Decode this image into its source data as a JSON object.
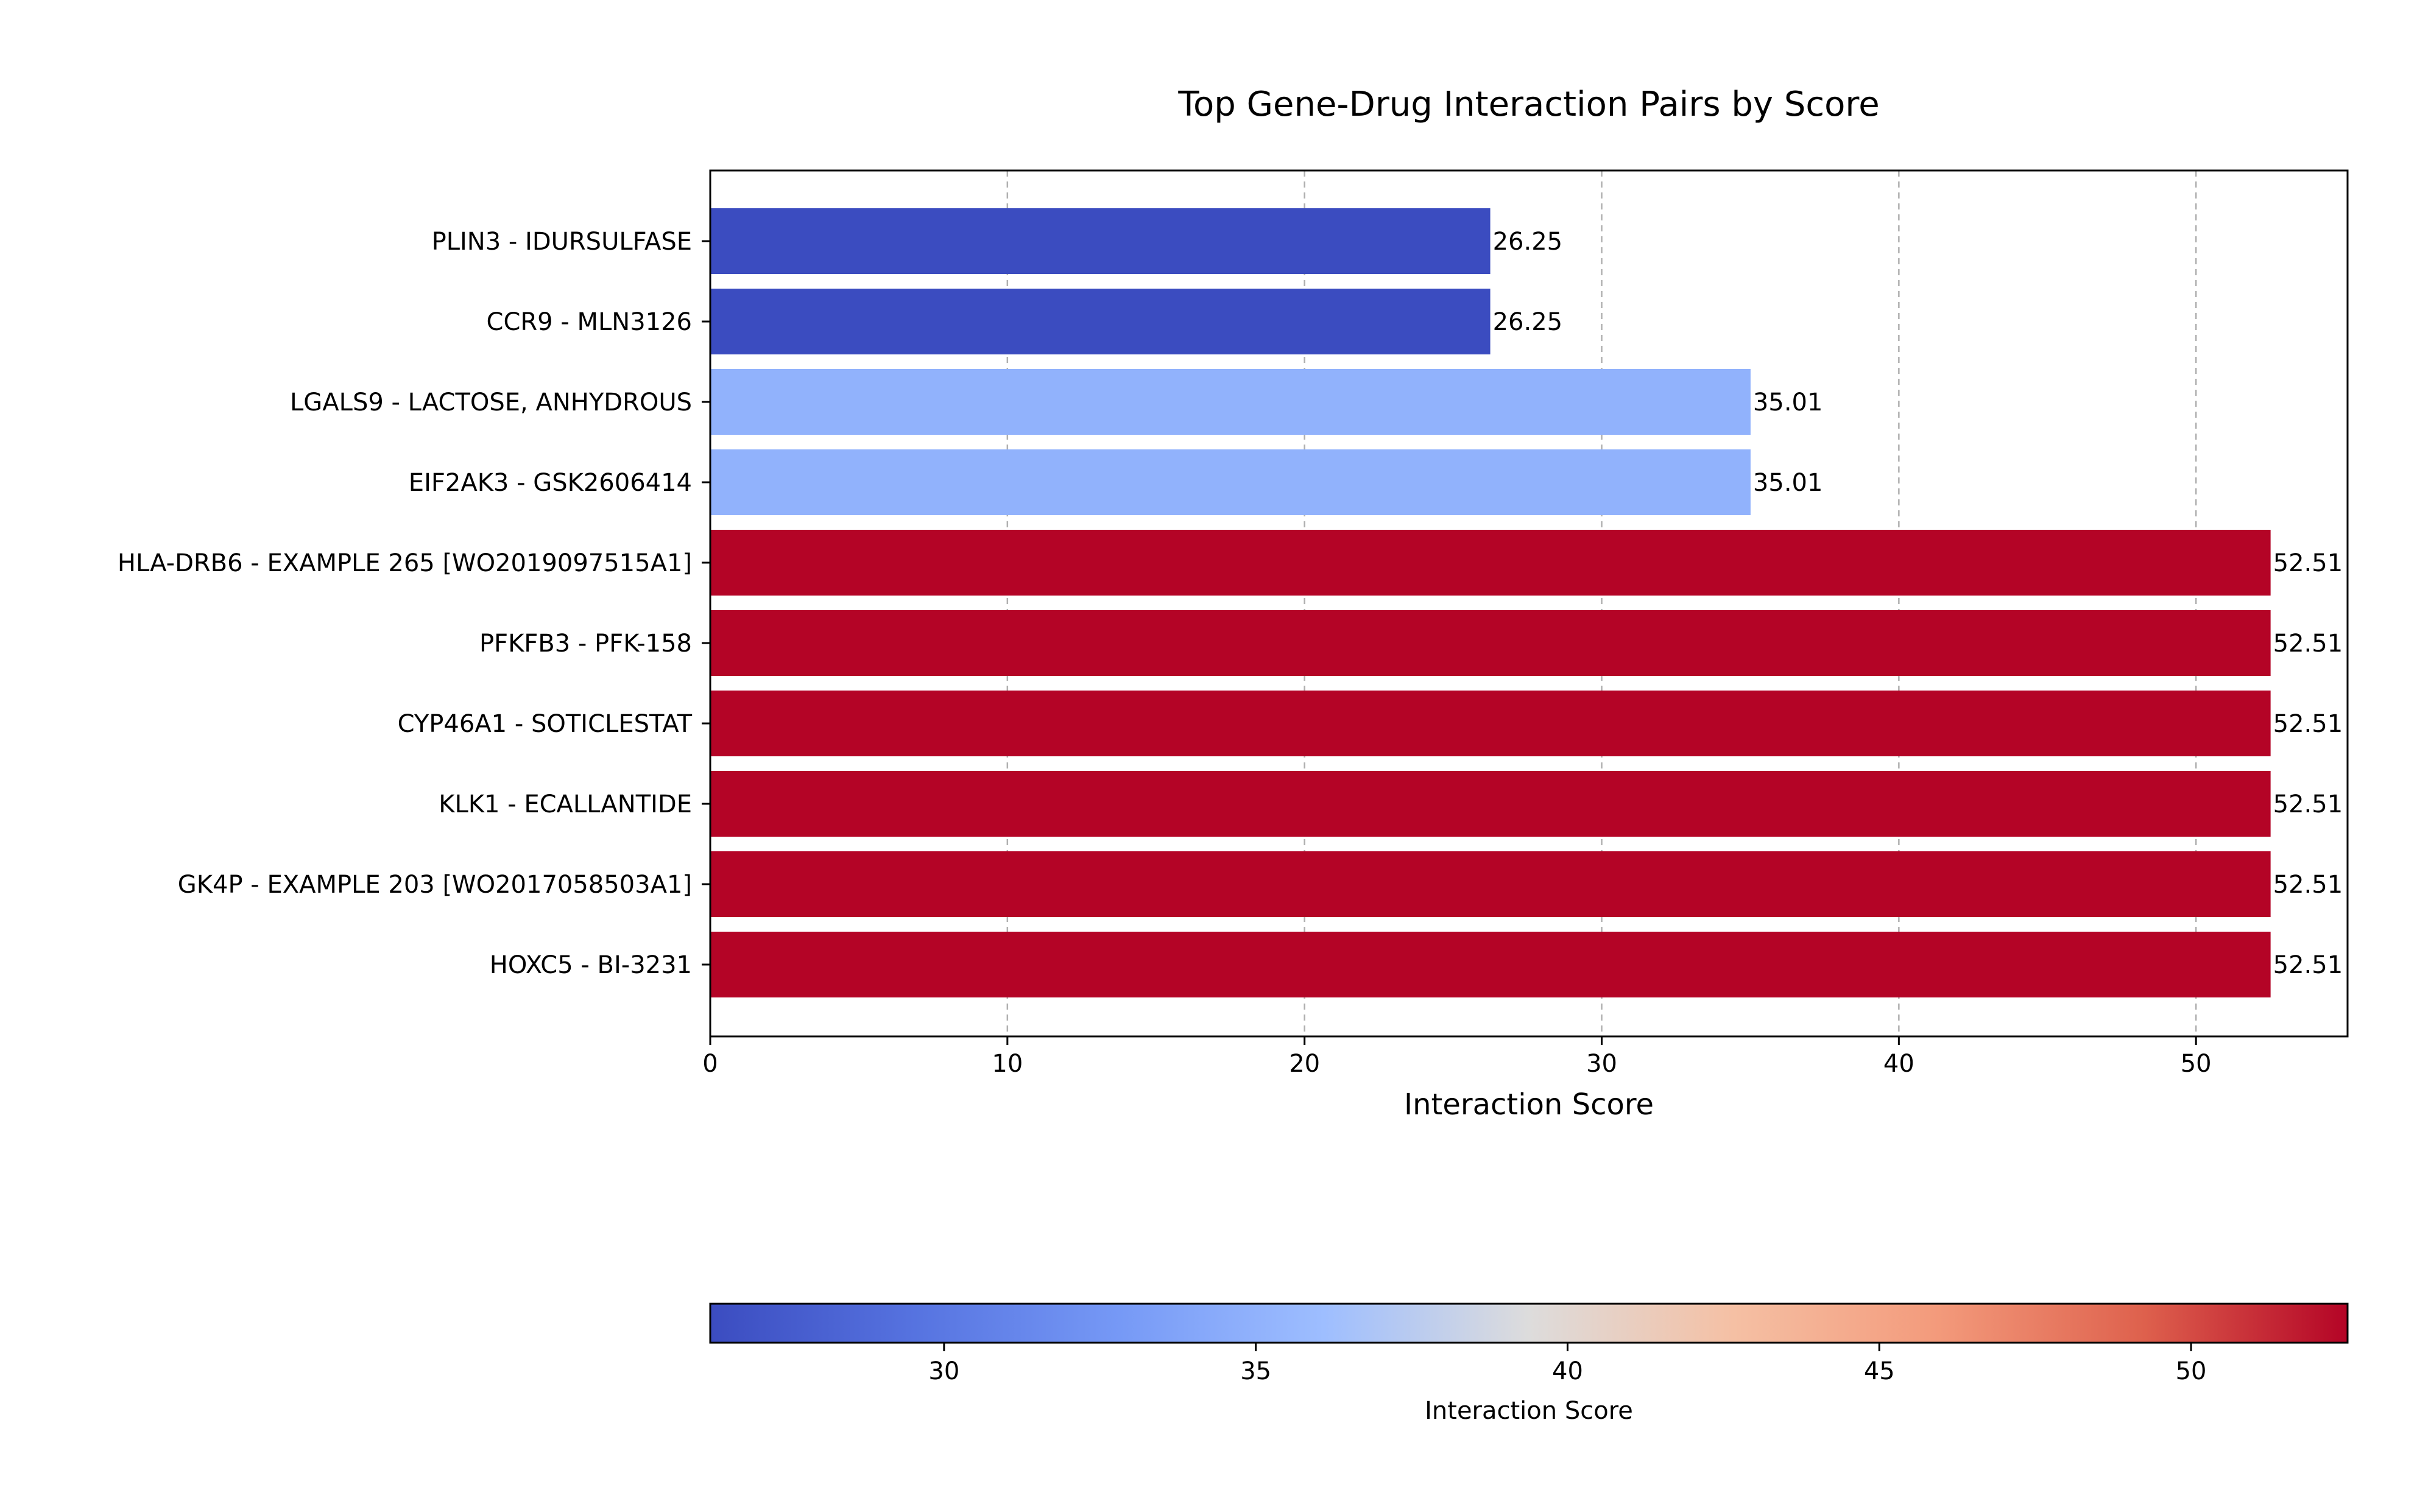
{
  "chart_data": {
    "type": "bar",
    "orientation": "horizontal",
    "title": "Top Gene-Drug Interaction Pairs by Score",
    "xlabel": "Interaction Score",
    "ylabel": "",
    "xlim": [
      0,
      55.1
    ],
    "xticks": [
      0,
      10,
      20,
      30,
      40,
      50
    ],
    "grid": "x-dashed",
    "categories": [
      "PLIN3 - IDURSULFASE",
      "CCR9 - MLN3126",
      "LGALS9 - LACTOSE, ANHYDROUS",
      "EIF2AK3 - GSK2606414",
      "HLA-DRB6 - EXAMPLE 265 [WO2019097515A1]",
      "PFKFB3 - PFK-158",
      "CYP46A1 - SOTICLESTAT",
      "KLK1 - ECALLANTIDE",
      "GK4P - EXAMPLE 203 [WO2017058503A1]",
      "HOXC5 - BI-3231"
    ],
    "values": [
      26.25,
      26.25,
      35.01,
      35.01,
      52.51,
      52.51,
      52.51,
      52.51,
      52.51,
      52.51
    ],
    "value_labels": [
      "26.25",
      "26.25",
      "35.01",
      "35.01",
      "52.51",
      "52.51",
      "52.51",
      "52.51",
      "52.51",
      "52.51"
    ],
    "colormap": "coolwarm",
    "colors": {
      "low": "#3b4cc0",
      "mid": "#aac7fd",
      "high": "#b40426"
    },
    "colorbar": {
      "label": "Interaction Score",
      "range": [
        26.25,
        52.51
      ],
      "ticks": [
        30,
        35,
        40,
        45,
        50
      ],
      "orientation": "horizontal",
      "placement": "bottom"
    }
  }
}
